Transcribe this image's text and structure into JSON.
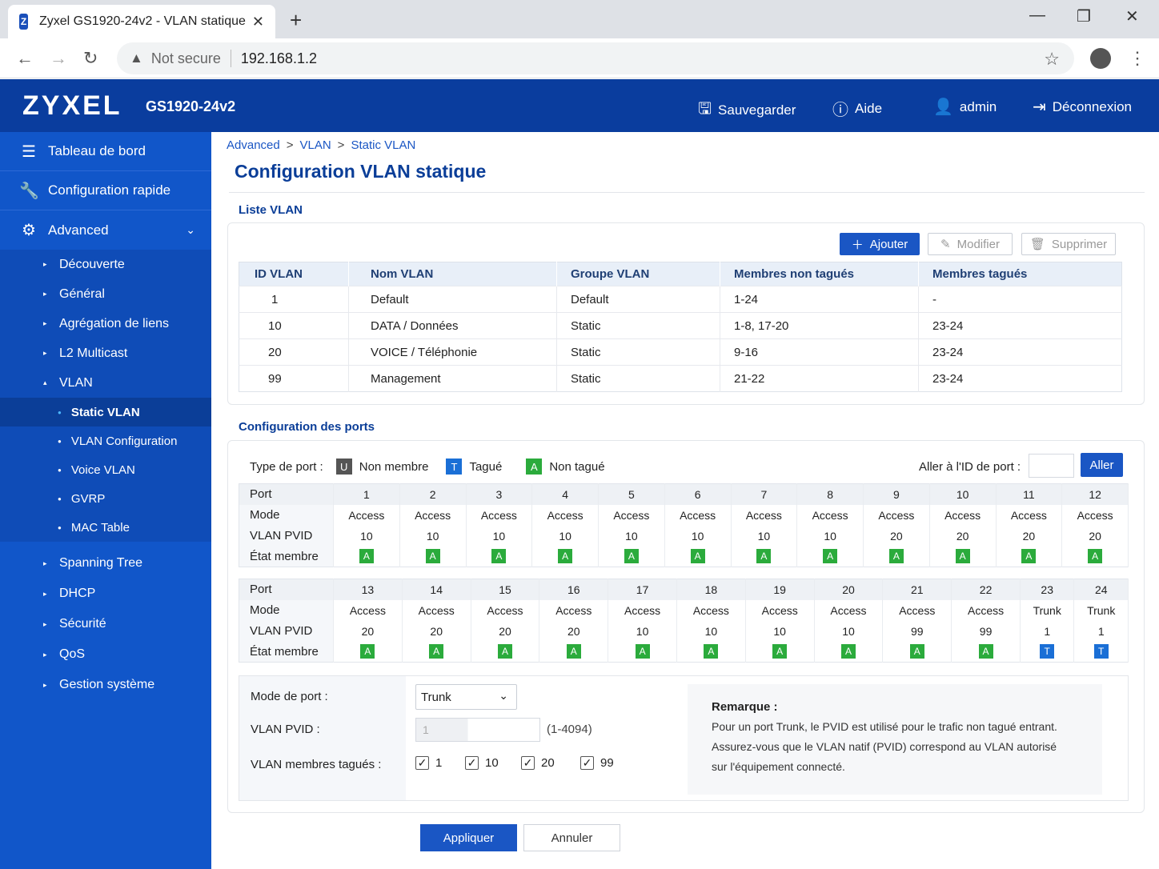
{
  "browser": {
    "tab_title": "Zyxel GS1920-24v2 - VLAN statique",
    "not_secure": "Not secure",
    "url": "192.168.1.2"
  },
  "header": {
    "logo": "ZYXEL",
    "model": "GS1920-24v2",
    "save": "Sauvegarder",
    "help": "Aide",
    "user": "admin",
    "logout": "Déconnexion"
  },
  "sidebar": {
    "dashboard": "Tableau de bord",
    "quick": "Configuration rapide",
    "advanced": "Advanced",
    "items": [
      "Découverte",
      "Général",
      "Agrégation de liens",
      "L2 Multicast",
      "VLAN"
    ],
    "vlan_sub": [
      "Static VLAN",
      "VLAN Configuration",
      "Voice VLAN",
      "GVRP",
      "MAC Table"
    ],
    "items_after": [
      "Spanning Tree",
      "DHCP",
      "Sécurité",
      "QoS",
      "Gestion système"
    ]
  },
  "breadcrumb": [
    "Advanced",
    "VLAN",
    "Static VLAN"
  ],
  "page_title": "Configuration VLAN statique",
  "vlan_list": {
    "section_title": "Liste VLAN",
    "add": "Ajouter",
    "edit": "Modifier",
    "delete": "Supprimer",
    "headers": [
      "ID VLAN",
      "Nom VLAN",
      "Groupe VLAN",
      "Membres non tagués",
      "Membres tagués"
    ],
    "rows": [
      [
        "1",
        "Default",
        "Default",
        "1-24",
        "-"
      ],
      [
        "10",
        "DATA / Données",
        "Static",
        "1-8, 17-20",
        "23-24"
      ],
      [
        "20",
        "VOICE / Téléphonie",
        "Static",
        "9-16",
        "23-24"
      ],
      [
        "99",
        "Management",
        "Static",
        "21-22",
        "23-24"
      ]
    ]
  },
  "ports": {
    "section_title": "Configuration des ports",
    "type_label": "Type de port :",
    "legend": [
      {
        "code": "U",
        "label": "Non membre",
        "color": "#555555"
      },
      {
        "code": "T",
        "label": "Tagué",
        "color": "#1a6fd6"
      },
      {
        "code": "A",
        "label": "Non tagué",
        "color": "#2bab3c"
      }
    ],
    "goto_label": "Aller à l'ID de port :",
    "goto_btn": "Aller",
    "row_labels": [
      "Port",
      "Mode",
      "VLAN PVID",
      "État membre"
    ],
    "blocks": [
      {
        "ports": [
          "1",
          "2",
          "3",
          "4",
          "5",
          "6",
          "7",
          "8",
          "9",
          "10",
          "11",
          "12"
        ],
        "modes": [
          "Access",
          "Access",
          "Access",
          "Access",
          "Access",
          "Access",
          "Access",
          "Access",
          "Access",
          "Access",
          "Access",
          "Access"
        ],
        "pvids": [
          "10",
          "10",
          "10",
          "10",
          "10",
          "10",
          "10",
          "10",
          "20",
          "20",
          "20",
          "20"
        ],
        "states": [
          "A",
          "A",
          "A",
          "A",
          "A",
          "A",
          "A",
          "A",
          "A",
          "A",
          "A",
          "A"
        ]
      },
      {
        "ports": [
          "13",
          "14",
          "15",
          "16",
          "17",
          "18",
          "19",
          "20",
          "21",
          "22",
          "23",
          "24"
        ],
        "modes": [
          "Access",
          "Access",
          "Access",
          "Access",
          "Access",
          "Access",
          "Access",
          "Access",
          "Access",
          "Access",
          "Trunk",
          "Trunk"
        ],
        "pvids": [
          "20",
          "20",
          "20",
          "20",
          "10",
          "10",
          "10",
          "10",
          "99",
          "99",
          "1",
          "1"
        ],
        "states": [
          "A",
          "A",
          "A",
          "A",
          "A",
          "A",
          "A",
          "A",
          "A",
          "A",
          "T",
          "T"
        ]
      }
    ]
  },
  "form": {
    "mode_label": "Mode de port :",
    "mode_value": "Trunk",
    "pvid_label": "VLAN PVID :",
    "pvid_value": "1",
    "pvid_range": "(1-4094)",
    "tagged_label": "VLAN membres tagués :",
    "tagged": [
      "1",
      "10",
      "20",
      "99"
    ],
    "note_title": "Remarque :",
    "note_lines": [
      "Pour un port Trunk, le PVID est utilisé pour le trafic non tagué entrant.",
      "Assurez-vous que le VLAN natif (PVID) correspond au VLAN autorisé",
      "sur l'équipement connecté."
    ]
  },
  "actions": {
    "apply": "Appliquer",
    "cancel": "Annuler"
  }
}
